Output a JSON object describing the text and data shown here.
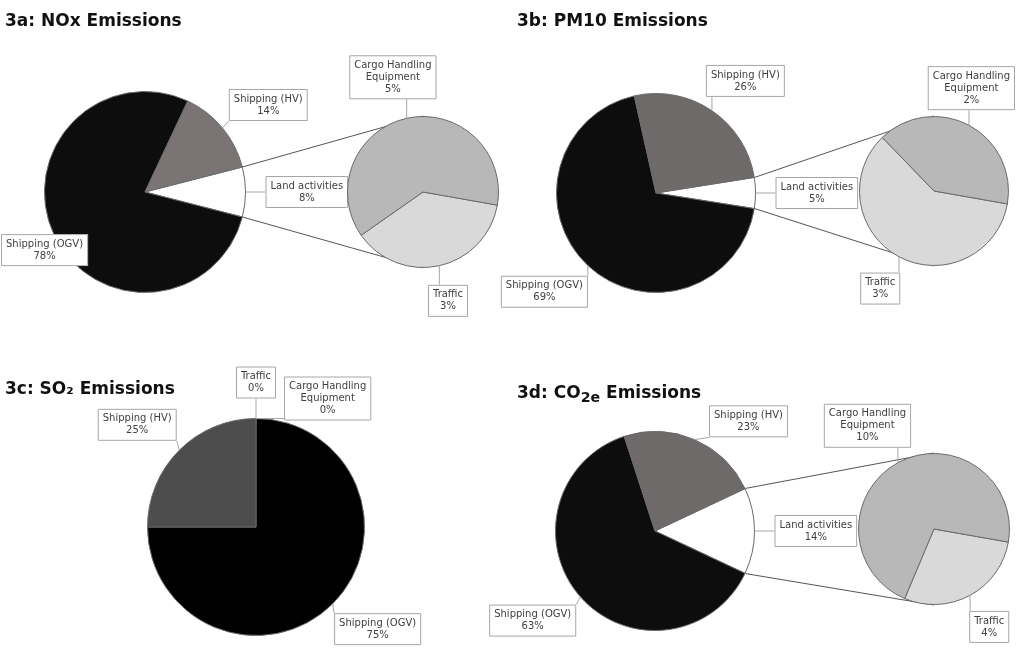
{
  "chart_data": [
    {
      "type": "pie",
      "title": "3a: NOx Emissions",
      "categories": [
        "Land activities",
        "Shipping (OGV)",
        "Shipping (HV)"
      ],
      "values": [
        8,
        78,
        14
      ],
      "value_labels": [
        "8%",
        "78%",
        "14%"
      ],
      "colors": [
        "#ffffff",
        "#0d0d0d",
        "#7a7574"
      ]
    },
    {
      "type": "pie",
      "categories": [
        "Traffic",
        "Cargo Handling Equipment"
      ],
      "values": [
        3,
        5
      ],
      "value_labels": [
        "3%",
        "5%"
      ],
      "colors": [
        "#d9d9d9",
        "#b8b8b8"
      ]
    },
    {
      "type": "pie",
      "title": "3b: PM10 Emissions",
      "categories": [
        "Land activities",
        "Shipping (OGV)",
        "Shipping (HV)"
      ],
      "values": [
        5,
        69,
        26
      ],
      "value_labels": [
        "5%",
        "69%",
        "26%"
      ],
      "colors": [
        "#ffffff",
        "#0d0d0d",
        "#6f6a6a"
      ]
    },
    {
      "type": "pie",
      "categories": [
        "Traffic",
        "Cargo Handling Equipment"
      ],
      "values": [
        3,
        2
      ],
      "value_labels": [
        "3%",
        "2%"
      ],
      "colors": [
        "#d9d9d9",
        "#b8b8b8"
      ]
    },
    {
      "type": "pie",
      "title": "3c: SO₂ Emissions",
      "categories": [
        "Shipping (OGV)",
        "Shipping (HV)",
        "Traffic",
        "Cargo Handling Equipment"
      ],
      "values": [
        75,
        25,
        0,
        0
      ],
      "value_labels": [
        "75%",
        "25%",
        "0%",
        "0%"
      ],
      "colors": [
        "#000000",
        "#4d4d4d",
        "#d9d9d9",
        "#b8b8b8"
      ]
    },
    {
      "type": "pie",
      "title": "3d: CO$_{2e}$ Emissions",
      "categories": [
        "Land activities",
        "Shipping (OGV)",
        "Shipping (HV)"
      ],
      "values": [
        14,
        63,
        23
      ],
      "value_labels": [
        "14%",
        "63%",
        "23%"
      ],
      "colors": [
        "#ffffff",
        "#0d0d0d",
        "#6e6a6a"
      ]
    },
    {
      "type": "pie",
      "categories": [
        "Traffic",
        "Cargo Handling Equipment"
      ],
      "values": [
        4,
        10
      ],
      "value_labels": [
        "4%",
        "10%"
      ],
      "colors": [
        "#d9d9d9",
        "#b8b8b8"
      ]
    }
  ]
}
